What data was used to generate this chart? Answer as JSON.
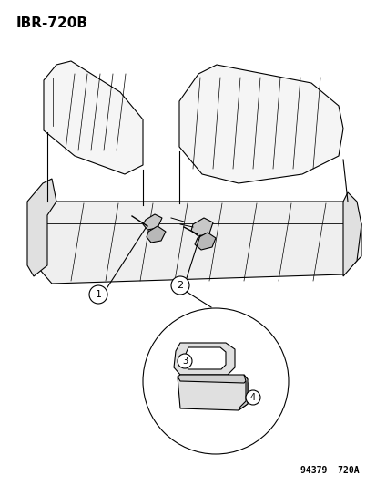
{
  "title_code": "IBR-720B",
  "footer_code": "94379  720A",
  "bg_color": "#ffffff",
  "line_color": "#000000",
  "title_fontsize": 11,
  "footer_fontsize": 7,
  "label_fontsize": 8,
  "figsize": [
    4.14,
    5.33
  ],
  "dpi": 100,
  "labels": [
    "1",
    "2",
    "3",
    "4"
  ]
}
